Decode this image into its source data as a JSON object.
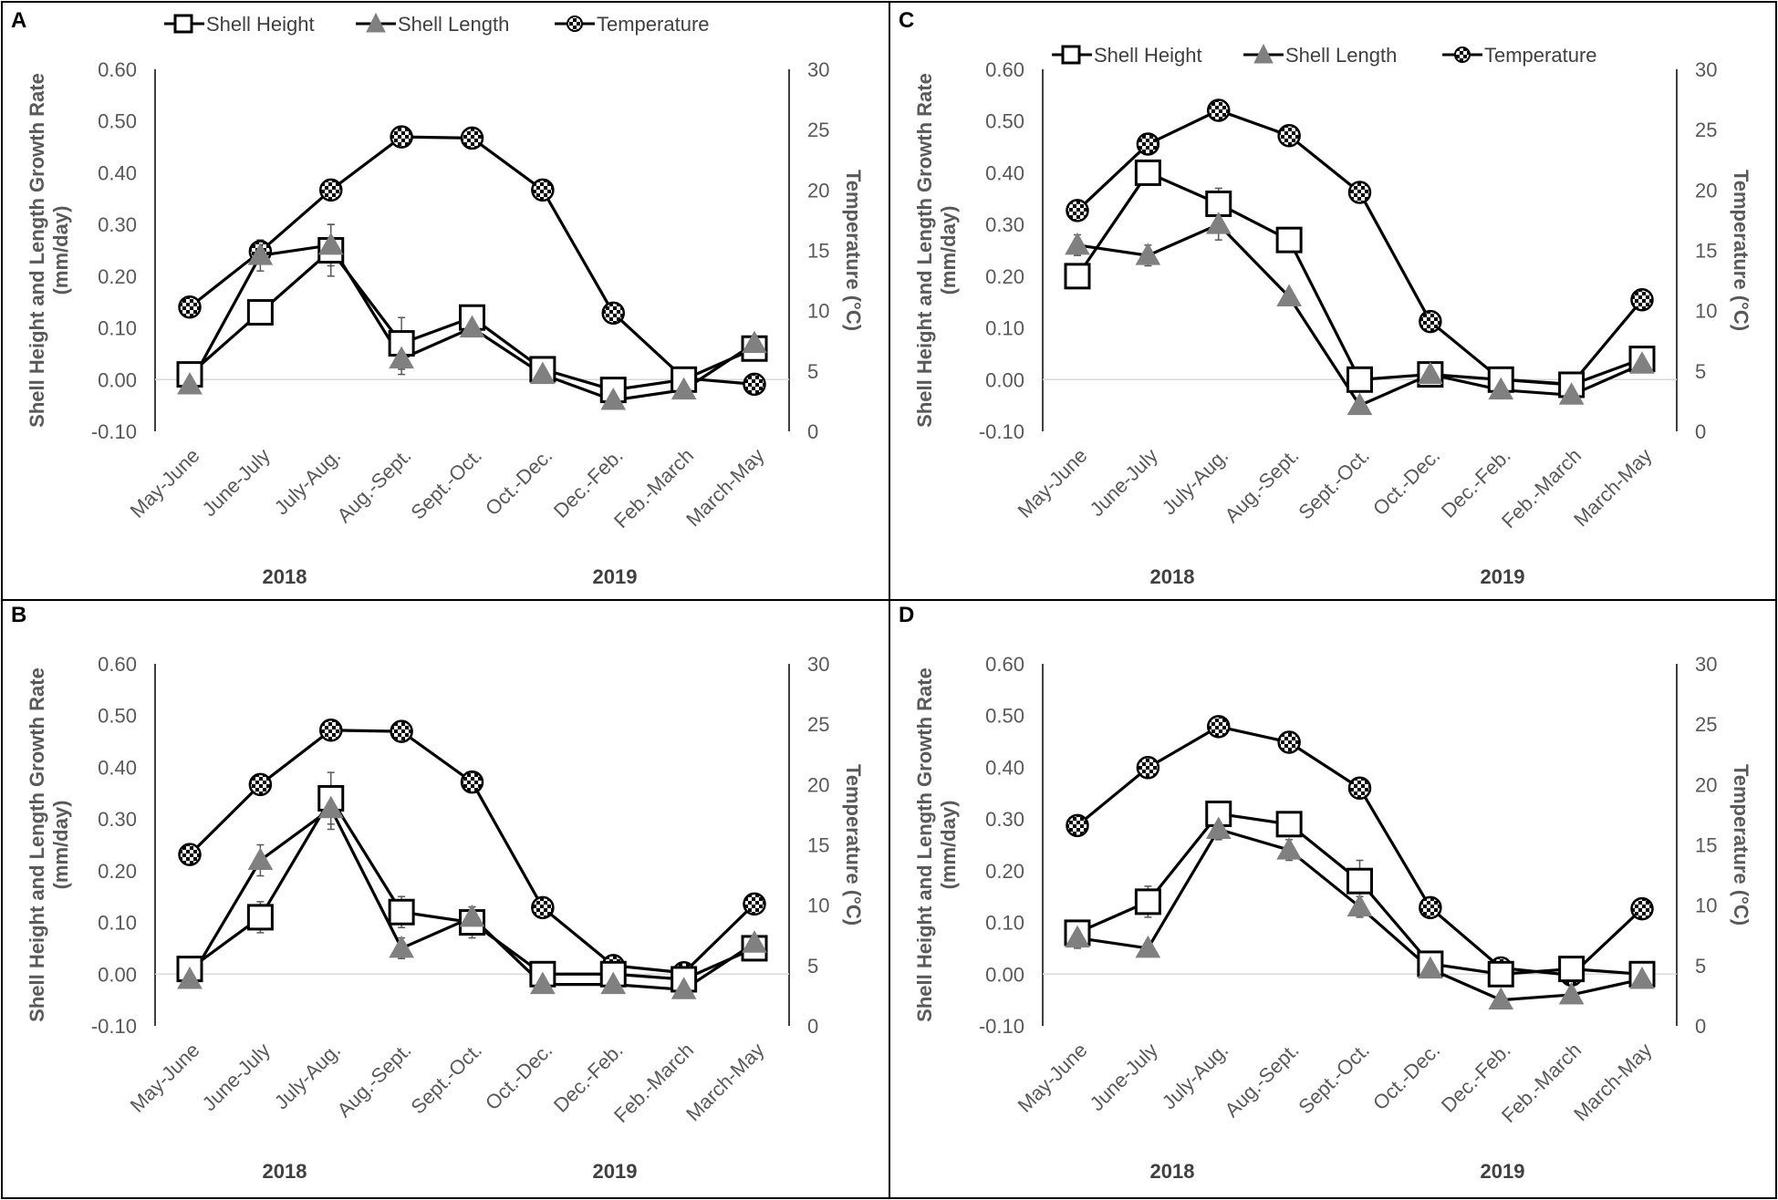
{
  "chart_data": [
    {
      "type": "line",
      "panel": "A",
      "categories": [
        "May-June",
        "June-July",
        "July-Aug.",
        "Aug.-Sept.",
        "Sept.-Oct.",
        "Oct.-Dec.",
        "Dec.-Feb.",
        "Feb.-March",
        "March-May"
      ],
      "year_labels": [
        "2018",
        "2019"
      ],
      "ylabel": "Shell Height and Length Growth Rate (mm/day)",
      "ylabel_lines": [
        "Shell Height and Length Growth Rate",
        "(mm/day)"
      ],
      "y2label": "Temperature (°C)",
      "ylim": [
        -0.1,
        0.6
      ],
      "y_ticks": [
        "-0.10",
        "0.00",
        "0.10",
        "0.20",
        "0.30",
        "0.40",
        "0.50",
        "0.60"
      ],
      "y2lim": [
        0,
        30
      ],
      "y2_ticks": [
        "0",
        "5",
        "10",
        "15",
        "20",
        "25",
        "30"
      ],
      "legend": [
        "Shell Height",
        "Shell Length",
        "Temperature"
      ],
      "legend_loc": "top",
      "series": [
        {
          "name": "Shell Height",
          "axis": "left",
          "marker": "square",
          "values": [
            0.01,
            0.13,
            0.25,
            0.07,
            0.12,
            0.02,
            -0.02,
            0.0,
            0.06
          ],
          "errors": [
            0,
            0.02,
            0.05,
            0.05,
            0,
            0,
            0,
            0,
            0
          ]
        },
        {
          "name": "Shell Length",
          "axis": "left",
          "marker": "triangle",
          "values": [
            -0.01,
            0.24,
            0.26,
            0.04,
            0.1,
            0.01,
            -0.04,
            -0.02,
            0.07
          ],
          "errors": [
            0,
            0.03,
            0.04,
            0.03,
            0,
            0,
            0,
            0,
            0
          ]
        },
        {
          "name": "Temperature",
          "axis": "right",
          "marker": "checker",
          "values": [
            10.3,
            14.9,
            20.0,
            24.4,
            24.3,
            20.0,
            9.8,
            4.4,
            3.9
          ]
        }
      ]
    },
    {
      "type": "line",
      "panel": "B",
      "categories": [
        "May-June",
        "June-July",
        "July-Aug.",
        "Aug.-Sept.",
        "Sept.-Oct.",
        "Oct.-Dec.",
        "Dec.-Feb.",
        "Feb.-March",
        "March-May"
      ],
      "year_labels": [
        "2018",
        "2019"
      ],
      "ylabel": "Shell Height and Length Growth Rate (mm/day)",
      "ylabel_lines": [
        "Shell Height and Length Growth Rate",
        "(mm/day)"
      ],
      "y2label": "Temperature (°C)",
      "ylim": [
        -0.1,
        0.6
      ],
      "y_ticks": [
        "-0.10",
        "0.00",
        "0.10",
        "0.20",
        "0.30",
        "0.40",
        "0.50",
        "0.60"
      ],
      "y2lim": [
        0,
        30
      ],
      "y2_ticks": [
        "0",
        "5",
        "10",
        "15",
        "20",
        "25",
        "30"
      ],
      "legend": [],
      "series": [
        {
          "name": "Shell Height",
          "axis": "left",
          "marker": "square",
          "values": [
            0.01,
            0.11,
            0.34,
            0.12,
            0.1,
            0.0,
            0.0,
            -0.01,
            0.05
          ],
          "errors": [
            0,
            0.03,
            0.05,
            0.03,
            0.03,
            0,
            0,
            0,
            0
          ]
        },
        {
          "name": "Shell Length",
          "axis": "left",
          "marker": "triangle",
          "values": [
            -0.01,
            0.22,
            0.32,
            0.05,
            0.11,
            -0.02,
            -0.02,
            -0.03,
            0.06
          ],
          "errors": [
            0,
            0.03,
            0.04,
            0.02,
            0.02,
            0,
            0,
            0,
            0
          ]
        },
        {
          "name": "Temperature",
          "axis": "right",
          "marker": "checker",
          "values": [
            14.2,
            20.0,
            24.5,
            24.4,
            20.2,
            9.8,
            5.0,
            4.4,
            10.1
          ]
        }
      ]
    },
    {
      "type": "line",
      "panel": "C",
      "categories": [
        "May-June",
        "June-July",
        "July-Aug.",
        "Aug.-Sept.",
        "Sept.-Oct.",
        "Oct.-Dec.",
        "Dec.-Feb.",
        "Feb.-March",
        "March-May"
      ],
      "year_labels": [
        "2018",
        "2019"
      ],
      "ylabel": "Shell Height and Length Growth Rate (mm/day)",
      "ylabel_lines": [
        "Shell Height and Length Growth Rate",
        "(mm/day)"
      ],
      "y2label": "Temperature (°C)",
      "ylim": [
        -0.1,
        0.6
      ],
      "y_ticks": [
        "-0.10",
        "0.00",
        "0.10",
        "0.20",
        "0.30",
        "0.40",
        "0.50",
        "0.60"
      ],
      "y2lim": [
        0,
        30
      ],
      "y2_ticks": [
        "0",
        "5",
        "10",
        "15",
        "20",
        "25",
        "30"
      ],
      "legend": [
        "Shell Height",
        "Shell Length",
        "Temperature"
      ],
      "legend_loc": "top",
      "series": [
        {
          "name": "Shell Height",
          "axis": "left",
          "marker": "square",
          "values": [
            0.2,
            0.4,
            0.34,
            0.27,
            0.0,
            0.01,
            0.0,
            -0.01,
            0.04
          ],
          "errors": [
            0,
            0,
            0.03,
            0,
            0,
            0,
            0,
            0,
            0
          ]
        },
        {
          "name": "Shell Length",
          "axis": "left",
          "marker": "triangle",
          "values": [
            0.26,
            0.24,
            0.3,
            0.16,
            -0.05,
            0.01,
            -0.02,
            -0.03,
            0.03
          ],
          "errors": [
            0.02,
            0.02,
            0.03,
            0,
            0,
            0,
            0,
            0,
            0
          ]
        },
        {
          "name": "Temperature",
          "axis": "right",
          "marker": "checker",
          "values": [
            18.3,
            23.8,
            26.6,
            24.5,
            19.8,
            9.1,
            4.3,
            3.9,
            10.9
          ]
        }
      ]
    },
    {
      "type": "line",
      "panel": "D",
      "categories": [
        "May-June",
        "June-July",
        "July-Aug.",
        "Aug.-Sept.",
        "Sept.-Oct.",
        "Oct.-Dec.",
        "Dec.-Feb.",
        "Feb.-March",
        "March-May"
      ],
      "year_labels": [
        "2018",
        "2019"
      ],
      "ylabel": "Shell Height and Length Growth Rate (mm/day)",
      "ylabel_lines": [
        "Shell Height and Length Growth Rate",
        "(mm/day)"
      ],
      "y2label": "Temperature (°C)",
      "ylim": [
        -0.1,
        0.6
      ],
      "y_ticks": [
        "-0.10",
        "0.00",
        "0.10",
        "0.20",
        "0.30",
        "0.40",
        "0.50",
        "0.60"
      ],
      "y2lim": [
        0,
        30
      ],
      "y2_ticks": [
        "0",
        "5",
        "10",
        "15",
        "20",
        "25",
        "30"
      ],
      "legend": [],
      "series": [
        {
          "name": "Shell Height",
          "axis": "left",
          "marker": "square",
          "values": [
            0.08,
            0.14,
            0.31,
            0.29,
            0.18,
            0.02,
            0.0,
            0.01,
            0.0
          ],
          "errors": [
            0,
            0.03,
            0,
            0.02,
            0.04,
            0,
            0,
            0,
            0
          ]
        },
        {
          "name": "Shell Length",
          "axis": "left",
          "marker": "triangle",
          "values": [
            0.07,
            0.05,
            0.28,
            0.24,
            0.13,
            0.01,
            -0.05,
            -0.04,
            -0.01
          ],
          "errors": [
            0.02,
            0,
            0.02,
            0.02,
            0.02,
            0,
            0,
            0,
            0
          ]
        },
        {
          "name": "Temperature",
          "axis": "right",
          "marker": "checker",
          "values": [
            16.6,
            21.4,
            24.8,
            23.5,
            19.7,
            9.8,
            4.8,
            4.2,
            9.7
          ]
        }
      ]
    }
  ]
}
